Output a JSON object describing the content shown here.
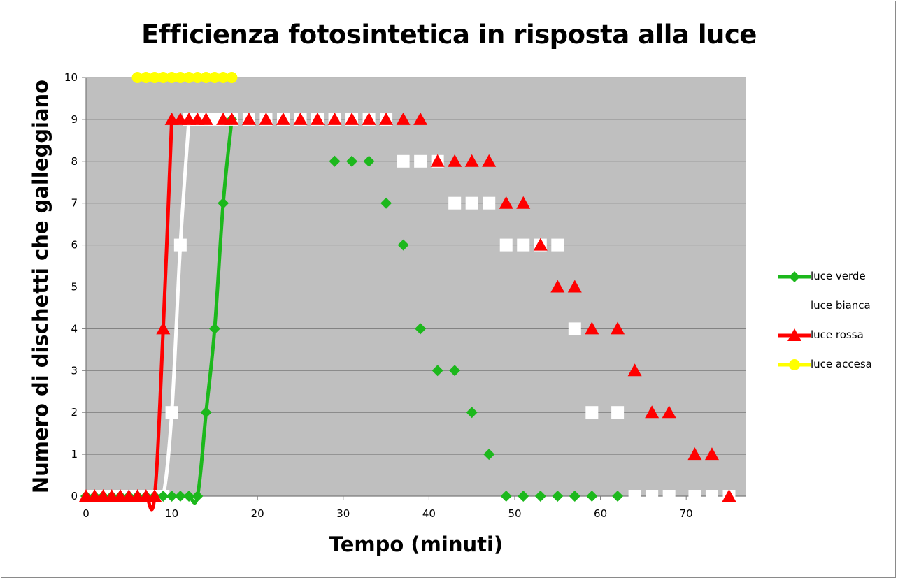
{
  "chart_data": {
    "type": "line",
    "title": "Efficienza fotosintetica in risposta alla luce",
    "xlabel": "Tempo (minuti)",
    "ylabel": "Numero di dischetti che galleggiano",
    "xlim": [
      0,
      77
    ],
    "ylim": [
      0,
      10
    ],
    "x_ticks": [
      0,
      10,
      20,
      30,
      40,
      50,
      60,
      70
    ],
    "y_ticks": [
      0,
      1,
      2,
      3,
      4,
      5,
      6,
      7,
      8,
      9,
      10
    ],
    "grid": "horizontal",
    "legend_position": "right",
    "plot_background": "#bfbfbf",
    "series": [
      {
        "name": "luce verde",
        "color": "#1cb81c",
        "marker": "diamond",
        "points": [
          [
            0,
            0
          ],
          [
            1,
            0
          ],
          [
            2,
            0
          ],
          [
            3,
            0
          ],
          [
            4,
            0
          ],
          [
            5,
            0
          ],
          [
            6,
            0
          ],
          [
            7,
            0
          ],
          [
            8,
            0
          ],
          [
            9,
            0
          ],
          [
            10,
            0
          ],
          [
            11,
            0
          ],
          [
            12,
            0
          ],
          [
            13,
            0
          ],
          [
            14,
            2
          ],
          [
            15,
            4
          ],
          [
            16,
            7
          ],
          [
            17,
            9
          ],
          [
            29,
            8
          ],
          [
            31,
            8
          ],
          [
            33,
            8
          ],
          [
            35,
            7
          ],
          [
            37,
            6
          ],
          [
            39,
            4
          ],
          [
            41,
            3
          ],
          [
            43,
            3
          ],
          [
            45,
            2
          ],
          [
            47,
            1
          ],
          [
            49,
            0
          ],
          [
            51,
            0
          ],
          [
            53,
            0
          ],
          [
            55,
            0
          ],
          [
            57,
            0
          ],
          [
            59,
            0
          ],
          [
            62,
            0
          ]
        ],
        "line_through_index": 17
      },
      {
        "name": "luce bianca",
        "color": "#ffffff",
        "marker": "square",
        "points": [
          [
            0,
            0
          ],
          [
            1,
            0
          ],
          [
            2,
            0
          ],
          [
            3,
            0
          ],
          [
            4,
            0
          ],
          [
            5,
            0
          ],
          [
            6,
            0
          ],
          [
            7,
            0
          ],
          [
            8,
            0
          ],
          [
            9,
            0
          ],
          [
            10,
            2
          ],
          [
            11,
            6
          ],
          [
            12,
            9
          ],
          [
            13,
            9
          ],
          [
            14,
            9
          ],
          [
            15,
            9
          ],
          [
            16,
            9
          ],
          [
            17,
            9
          ],
          [
            19,
            9
          ],
          [
            21,
            9
          ],
          [
            23,
            9
          ],
          [
            25,
            9
          ],
          [
            27,
            9
          ],
          [
            29,
            9
          ],
          [
            31,
            9
          ],
          [
            33,
            9
          ],
          [
            35,
            9
          ],
          [
            37,
            8
          ],
          [
            39,
            8
          ],
          [
            41,
            8
          ],
          [
            43,
            7
          ],
          [
            45,
            7
          ],
          [
            47,
            7
          ],
          [
            49,
            6
          ],
          [
            51,
            6
          ],
          [
            53,
            6
          ],
          [
            55,
            6
          ],
          [
            57,
            4
          ],
          [
            59,
            2
          ],
          [
            62,
            2
          ],
          [
            64,
            0
          ],
          [
            66,
            0
          ],
          [
            68,
            0
          ],
          [
            71,
            0
          ],
          [
            73,
            0
          ],
          [
            75,
            0
          ]
        ],
        "line_through_index": 12
      },
      {
        "name": "luce rossa",
        "color": "#ff0000",
        "marker": "triangle",
        "points": [
          [
            0,
            0
          ],
          [
            1,
            0
          ],
          [
            2,
            0
          ],
          [
            3,
            0
          ],
          [
            4,
            0
          ],
          [
            5,
            0
          ],
          [
            6,
            0
          ],
          [
            7,
            0
          ],
          [
            8,
            0
          ],
          [
            9,
            4
          ],
          [
            10,
            9
          ],
          [
            11,
            9
          ],
          [
            12,
            9
          ],
          [
            13,
            9
          ],
          [
            14,
            9
          ],
          [
            16,
            9
          ],
          [
            17,
            9
          ],
          [
            19,
            9
          ],
          [
            21,
            9
          ],
          [
            23,
            9
          ],
          [
            25,
            9
          ],
          [
            27,
            9
          ],
          [
            29,
            9
          ],
          [
            31,
            9
          ],
          [
            33,
            9
          ],
          [
            35,
            9
          ],
          [
            37,
            9
          ],
          [
            39,
            9
          ],
          [
            41,
            8
          ],
          [
            43,
            8
          ],
          [
            45,
            8
          ],
          [
            47,
            8
          ],
          [
            49,
            7
          ],
          [
            51,
            7
          ],
          [
            53,
            6
          ],
          [
            55,
            5
          ],
          [
            57,
            5
          ],
          [
            59,
            4
          ],
          [
            62,
            4
          ],
          [
            64,
            3
          ],
          [
            66,
            2
          ],
          [
            68,
            2
          ],
          [
            71,
            1
          ],
          [
            73,
            1
          ],
          [
            75,
            0
          ]
        ],
        "line_through_index": 10
      },
      {
        "name": "luce accesa",
        "color": "#ffff00",
        "marker": "circle",
        "points": [
          [
            6,
            10
          ],
          [
            7,
            10
          ],
          [
            8,
            10
          ],
          [
            9,
            10
          ],
          [
            10,
            10
          ],
          [
            11,
            10
          ],
          [
            12,
            10
          ],
          [
            13,
            10
          ],
          [
            14,
            10
          ],
          [
            15,
            10
          ],
          [
            16,
            10
          ],
          [
            17,
            10
          ]
        ],
        "line_through_index": 11
      }
    ]
  }
}
